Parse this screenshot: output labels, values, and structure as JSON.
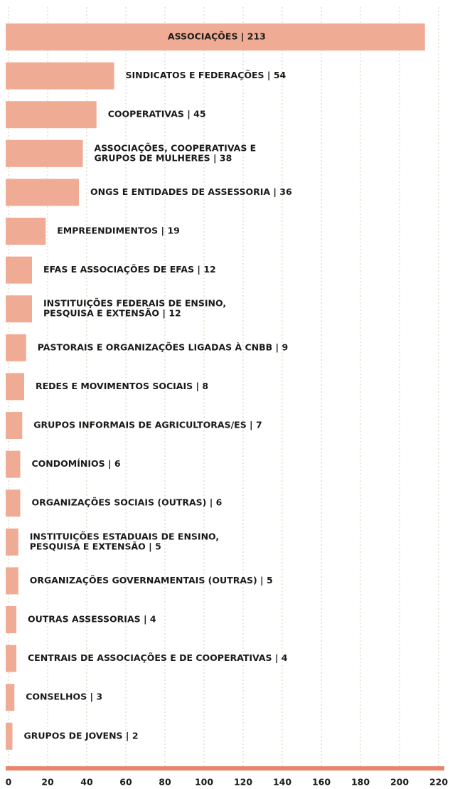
{
  "chart_data": {
    "type": "barh",
    "categories": [
      [
        "ASSOCIAÇÕES | 213"
      ],
      [
        "SINDICATOS E FEDERAÇÕES | 54"
      ],
      [
        "COOPERATIVAS | 45"
      ],
      [
        "ASSOCIAÇÕES, COOPERATIVAS E",
        "GRUPOS DE MULHERES | 38"
      ],
      [
        "ONGS E ENTIDADES DE ASSESSORIA | 36"
      ],
      [
        "EMPREENDIMENTOS | 19"
      ],
      [
        "EFAS E ASSOCIAÇÕES DE EFAS | 12"
      ],
      [
        "INSTITUIÇÕES FEDERAIS DE ENSINO,",
        "PESQUISA E EXTENSÃO | 12"
      ],
      [
        "PASTORAIS E ORGANIZAÇÕES LIGADAS À CNBB | 9"
      ],
      [
        "REDES E MOVIMENTOS SOCIAIS | 8"
      ],
      [
        "GRUPOS INFORMAIS DE AGRICULTORAS/ES | 7"
      ],
      [
        "CONDOMÍNIOS | 6"
      ],
      [
        "ORGANIZAÇÕES SOCIAIS (OUTRAS) | 6"
      ],
      [
        "INSTITUIÇÕES ESTADUAIS DE ENSINO,",
        "PESQUISA E EXTENSÃO | 5"
      ],
      [
        "ORGANIZAÇÕES GOVERNAMENTAIS (OUTRAS) | 5"
      ],
      [
        "OUTRAS ASSESSORIAS | 4"
      ],
      [
        "CENTRAIS DE ASSOCIAÇÕES E DE COOPERATIVAS | 4"
      ],
      [
        "CONSELHOS | 3"
      ],
      [
        "GRUPOS DE JOVENS | 2"
      ]
    ],
    "values": [
      213,
      54,
      45,
      38,
      36,
      19,
      12,
      12,
      9,
      8,
      7,
      6,
      6,
      5,
      5,
      4,
      4,
      3,
      2
    ],
    "color": "#f0ab95",
    "axis_color": "#e8866c",
    "grid_color": "#d6dbbf",
    "xlim": [
      0,
      220
    ],
    "xticks": [
      0,
      20,
      40,
      60,
      80,
      100,
      120,
      140,
      160,
      180,
      200,
      220
    ],
    "grid": true
  }
}
